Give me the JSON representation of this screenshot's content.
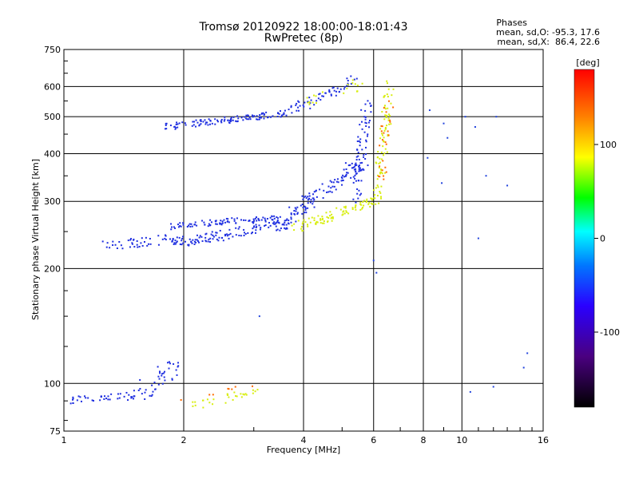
{
  "chart_data": {
    "type": "scatter",
    "title": "Tromsø 20120922 18:00:00-18:01:43",
    "subtitle": "RwPretec (8p)",
    "xlabel": "Frequency [MHz]",
    "ylabel": "Stationary phase Virtual Height [km]",
    "x_scale": "log",
    "y_scale": "log",
    "xlim": [
      1,
      16
    ],
    "ylim": [
      75,
      750
    ],
    "x_ticks": [
      1,
      2,
      4,
      6,
      8,
      10,
      16
    ],
    "y_ticks": [
      75,
      100,
      200,
      300,
      400,
      500,
      600,
      750
    ],
    "grid": true,
    "legend": {
      "title": "Phases",
      "lines": [
        "mean, sd,O: -95.3, 17.6",
        "mean, sd,X:  86.4, 22.6"
      ],
      "placement": "top-right"
    },
    "colorbar": {
      "label": "[deg]",
      "range": [
        -180,
        180
      ],
      "ticks": [
        100,
        0,
        -100
      ],
      "colors": [
        "#000000",
        "#3b006b",
        "#2a00ff",
        "#0077ff",
        "#00ffff",
        "#00ff00",
        "#ffff00",
        "#ff7f00",
        "#ff0000"
      ]
    },
    "series": [
      {
        "mode": "O",
        "color": "#1f2fe0",
        "clusters": [
          {
            "x": [
              1.0,
              1.5
            ],
            "y": [
              90,
              93
            ],
            "n": 38,
            "jitter": 0.02
          },
          {
            "x": [
              1.5,
              1.95
            ],
            "y": [
              92,
              112
            ],
            "n": 45,
            "jitter": 0.05
          },
          {
            "x": [
              1.25,
              1.95
            ],
            "y": [
              230,
              240
            ],
            "n": 45,
            "jitter": 0.03
          },
          {
            "x": [
              1.85,
              3.7
            ],
            "y": [
              232,
              262
            ],
            "n": 120,
            "jitter": 0.03
          },
          {
            "x": [
              1.85,
              3.5
            ],
            "y": [
              258,
              272
            ],
            "n": 90,
            "jitter": 0.02
          },
          {
            "x": [
              3.5,
              5.6
            ],
            "y": [
              262,
              380
            ],
            "n": 120,
            "jitter": 0.04
          },
          {
            "x": [
              5.4,
              5.8
            ],
            "y": [
              300,
              560
            ],
            "n": 70,
            "jitter": 0.03
          },
          {
            "x": [
              1.8,
              3.6
            ],
            "y": [
              470,
              510
            ],
            "n": 110,
            "jitter": 0.02
          },
          {
            "x": [
              3.6,
              5.4
            ],
            "y": [
              510,
              620
            ],
            "n": 60,
            "jitter": 0.03
          }
        ]
      },
      {
        "mode": "X",
        "color": "#d8ee10",
        "clusters": [
          {
            "x": [
              2.1,
              3.1
            ],
            "y": [
              88,
              95
            ],
            "n": 30,
            "jitter": 0.03
          },
          {
            "x": [
              3.8,
              6.0
            ],
            "y": [
              255,
              300
            ],
            "n": 90,
            "jitter": 0.03
          },
          {
            "x": [
              6.1,
              6.6
            ],
            "y": [
              300,
              620
            ],
            "n": 80,
            "jitter": 0.03
          },
          {
            "x": [
              4.0,
              5.6
            ],
            "y": [
              540,
              610
            ],
            "n": 20,
            "jitter": 0.03
          }
        ]
      },
      {
        "mode": "other",
        "color": "#ff6a00",
        "clusters": [
          {
            "x": [
              6.2,
              6.6
            ],
            "y": [
              330,
              560
            ],
            "n": 25,
            "jitter": 0.03
          },
          {
            "x": [
              1.9,
              3.0
            ],
            "y": [
              88,
              98
            ],
            "n": 8,
            "jitter": 0.03
          }
        ]
      },
      {
        "mode": "scattered",
        "color": "#2244dd",
        "points": [
          [
            8.3,
            520
          ],
          [
            9.0,
            480
          ],
          [
            9.2,
            440
          ],
          [
            10.2,
            500
          ],
          [
            10.8,
            470
          ],
          [
            11.5,
            350
          ],
          [
            12.2,
            500
          ],
          [
            13.0,
            330
          ],
          [
            10.5,
            95
          ],
          [
            12.0,
            98
          ],
          [
            14.3,
            110
          ],
          [
            14.6,
            120
          ],
          [
            6.0,
            210
          ],
          [
            6.1,
            195
          ],
          [
            8.2,
            390
          ],
          [
            8.9,
            335
          ],
          [
            3.1,
            150
          ],
          [
            11.0,
            240
          ]
        ]
      }
    ]
  }
}
